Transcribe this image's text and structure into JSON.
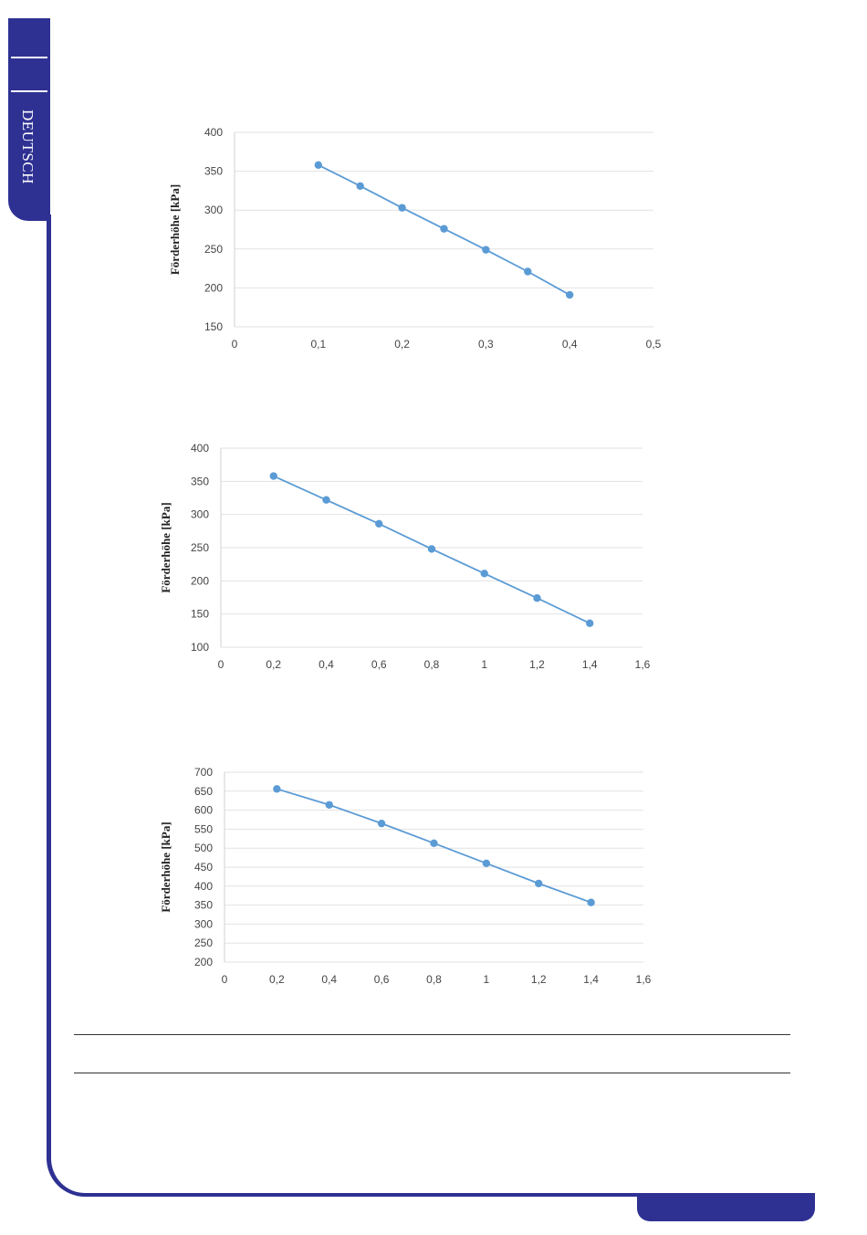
{
  "sidebar": {
    "language_tab": "DEUTSCH"
  },
  "colors": {
    "brand": "#2e3192",
    "series": "#5b9bd5",
    "grid": "#e2e2e2"
  },
  "chart_data": [
    {
      "type": "scatter",
      "ylabel": "Förderhöhe [kPa]",
      "xlabel": "",
      "xlim": [
        0,
        0.5
      ],
      "ylim": [
        150,
        400
      ],
      "x_ticks": [
        "0",
        "0,1",
        "0,2",
        "0,3",
        "0,4",
        "0,5"
      ],
      "y_ticks": [
        "150",
        "200",
        "250",
        "300",
        "350",
        "400"
      ],
      "grid": true,
      "series": [
        {
          "x": [
            0.1,
            0.15,
            0.2,
            0.25,
            0.3,
            0.35,
            0.4
          ],
          "y": [
            358,
            331,
            303,
            276,
            249,
            221,
            191
          ]
        }
      ]
    },
    {
      "type": "scatter",
      "ylabel": "Förderhöhe [kPa]",
      "xlabel": "",
      "xlim": [
        0,
        1.6
      ],
      "ylim": [
        100,
        400
      ],
      "x_ticks": [
        "0",
        "0,2",
        "0,4",
        "0,6",
        "0,8",
        "1",
        "1,2",
        "1,4",
        "1,6"
      ],
      "y_ticks": [
        "100",
        "150",
        "200",
        "250",
        "300",
        "350",
        "400"
      ],
      "grid": true,
      "series": [
        {
          "x": [
            0.2,
            0.4,
            0.6,
            0.8,
            1.0,
            1.2,
            1.4
          ],
          "y": [
            358,
            322,
            286,
            248,
            211,
            174,
            136
          ]
        }
      ]
    },
    {
      "type": "scatter",
      "ylabel": "Förderhöhe [kPa]",
      "xlabel": "",
      "xlim": [
        0,
        1.6
      ],
      "ylim": [
        200,
        700
      ],
      "x_ticks": [
        "0",
        "0,2",
        "0,4",
        "0,6",
        "0,8",
        "1",
        "1,2",
        "1,4",
        "1,6"
      ],
      "y_ticks": [
        "200",
        "250",
        "300",
        "350",
        "400",
        "450",
        "500",
        "550",
        "600",
        "650",
        "700"
      ],
      "grid": true,
      "series": [
        {
          "x": [
            0.2,
            0.4,
            0.6,
            0.8,
            1.0,
            1.2,
            1.4
          ],
          "y": [
            656,
            614,
            565,
            513,
            460,
            407,
            357
          ]
        }
      ]
    }
  ]
}
